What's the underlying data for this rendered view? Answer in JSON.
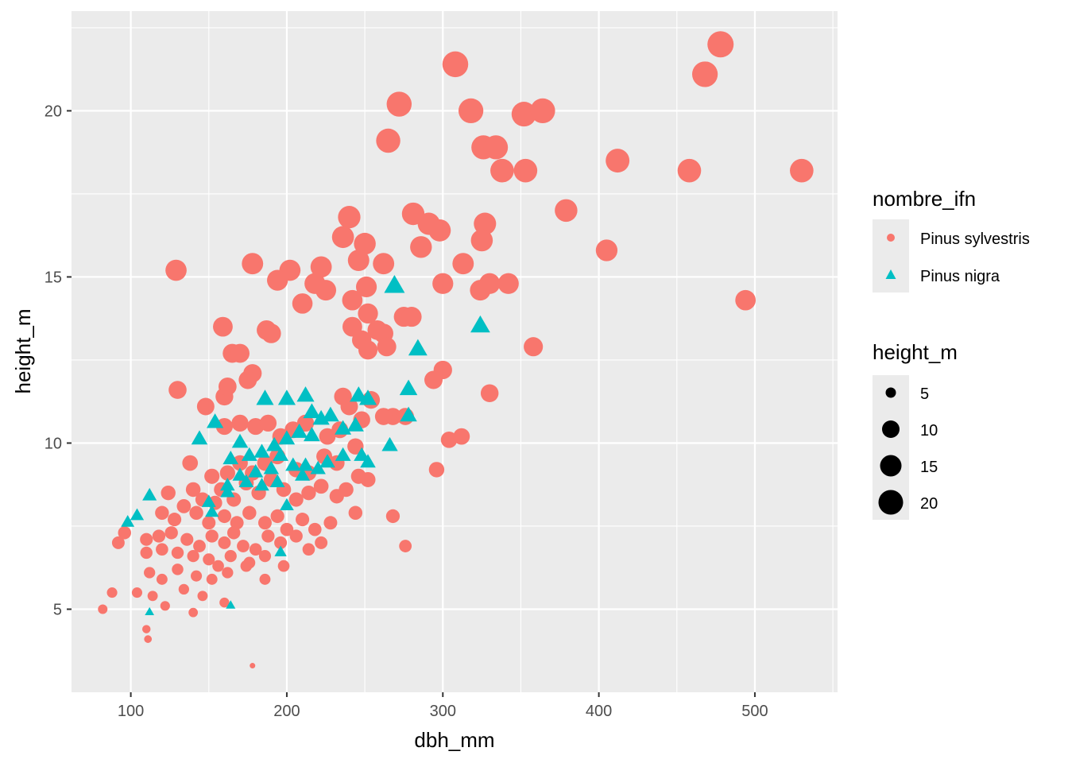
{
  "chart_data": {
    "type": "scatter",
    "xlabel": "dbh_mm",
    "ylabel": "height_m",
    "xlim": [
      62,
      553
    ],
    "ylim": [
      2.5,
      23.0
    ],
    "x_ticks": [
      100,
      200,
      300,
      400,
      500
    ],
    "y_ticks": [
      5,
      10,
      15,
      20
    ],
    "x_tick_labels": [
      "100",
      "200",
      "300",
      "400",
      "500"
    ],
    "y_tick_labels": [
      "5",
      "10",
      "15",
      "20"
    ],
    "grid": true,
    "legend_position": "right",
    "color_legend": {
      "title": "nombre_ifn",
      "entries": [
        {
          "label": "Pinus sylvestris",
          "color": "#F8766D",
          "shape": "circle"
        },
        {
          "label": "Pinus nigra",
          "color": "#00BFC4",
          "shape": "triangle"
        }
      ]
    },
    "size_legend": {
      "title": "height_m",
      "entries": [
        {
          "label": "5",
          "value": 5
        },
        {
          "label": "10",
          "value": 10
        },
        {
          "label": "15",
          "value": 15
        },
        {
          "label": "20",
          "value": 20
        }
      ]
    },
    "series": [
      {
        "name": "Pinus sylvestris",
        "shape": "circle",
        "color": "#F8766D",
        "points": [
          [
            478,
            22.0
          ],
          [
            308,
            21.4
          ],
          [
            468,
            21.1
          ],
          [
            272,
            20.2
          ],
          [
            318,
            20.0
          ],
          [
            352,
            19.9
          ],
          [
            364,
            20.0
          ],
          [
            265,
            19.1
          ],
          [
            326,
            18.9
          ],
          [
            334,
            18.9
          ],
          [
            338,
            18.2
          ],
          [
            353,
            18.2
          ],
          [
            412,
            18.5
          ],
          [
            458,
            18.2
          ],
          [
            530,
            18.2
          ],
          [
            379,
            17.0
          ],
          [
            281,
            16.9
          ],
          [
            240,
            16.8
          ],
          [
            291,
            16.6
          ],
          [
            298,
            16.4
          ],
          [
            327,
            16.6
          ],
          [
            325,
            16.1
          ],
          [
            250,
            16.0
          ],
          [
            236,
            16.2
          ],
          [
            405,
            15.8
          ],
          [
            286,
            15.9
          ],
          [
            262,
            15.4
          ],
          [
            246,
            15.5
          ],
          [
            202,
            15.2
          ],
          [
            178,
            15.4
          ],
          [
            129,
            15.2
          ],
          [
            222,
            15.3
          ],
          [
            313,
            15.4
          ],
          [
            194,
            14.9
          ],
          [
            300,
            14.8
          ],
          [
            330,
            14.8
          ],
          [
            342,
            14.8
          ],
          [
            218,
            14.8
          ],
          [
            225,
            14.6
          ],
          [
            251,
            14.7
          ],
          [
            210,
            14.2
          ],
          [
            242,
            14.3
          ],
          [
            324,
            14.6
          ],
          [
            494,
            14.3
          ],
          [
            159,
            13.5
          ],
          [
            187,
            13.4
          ],
          [
            190,
            13.3
          ],
          [
            252,
            13.9
          ],
          [
            242,
            13.5
          ],
          [
            258,
            13.4
          ],
          [
            275,
            13.8
          ],
          [
            280,
            13.8
          ],
          [
            248,
            13.1
          ],
          [
            262,
            13.3
          ],
          [
            252,
            12.8
          ],
          [
            264,
            12.9
          ],
          [
            358,
            12.9
          ],
          [
            165,
            12.7
          ],
          [
            170,
            12.7
          ],
          [
            178,
            12.1
          ],
          [
            175,
            11.9
          ],
          [
            130,
            11.6
          ],
          [
            160,
            11.4
          ],
          [
            162,
            11.7
          ],
          [
            300,
            12.2
          ],
          [
            294,
            11.9
          ],
          [
            330,
            11.5
          ],
          [
            236,
            11.4
          ],
          [
            240,
            11.1
          ],
          [
            254,
            11.3
          ],
          [
            148,
            11.1
          ],
          [
            304,
            10.1
          ],
          [
            312,
            10.2
          ],
          [
            268,
            10.8
          ],
          [
            276,
            10.8
          ],
          [
            248,
            10.7
          ],
          [
            262,
            10.8
          ],
          [
            160,
            10.5
          ],
          [
            170,
            10.6
          ],
          [
            180,
            10.5
          ],
          [
            188,
            10.6
          ],
          [
            196,
            10.2
          ],
          [
            204,
            10.4
          ],
          [
            212,
            10.6
          ],
          [
            226,
            10.2
          ],
          [
            234,
            10.4
          ],
          [
            244,
            9.9
          ],
          [
            296,
            9.2
          ],
          [
            138,
            9.4
          ],
          [
            152,
            9.0
          ],
          [
            162,
            9.1
          ],
          [
            170,
            9.4
          ],
          [
            178,
            9.1
          ],
          [
            186,
            9.4
          ],
          [
            194,
            9.6
          ],
          [
            206,
            9.2
          ],
          [
            214,
            9.1
          ],
          [
            224,
            9.6
          ],
          [
            232,
            9.4
          ],
          [
            246,
            9.0
          ],
          [
            252,
            8.9
          ],
          [
            238,
            8.6
          ],
          [
            124,
            8.5
          ],
          [
            140,
            8.6
          ],
          [
            146,
            8.3
          ],
          [
            154,
            8.2
          ],
          [
            158,
            8.6
          ],
          [
            166,
            8.3
          ],
          [
            174,
            8.8
          ],
          [
            182,
            8.5
          ],
          [
            190,
            8.9
          ],
          [
            198,
            8.6
          ],
          [
            206,
            8.3
          ],
          [
            214,
            8.5
          ],
          [
            222,
            8.7
          ],
          [
            232,
            8.4
          ],
          [
            120,
            7.9
          ],
          [
            128,
            7.7
          ],
          [
            134,
            8.1
          ],
          [
            142,
            7.9
          ],
          [
            150,
            7.6
          ],
          [
            160,
            7.8
          ],
          [
            168,
            7.6
          ],
          [
            176,
            7.9
          ],
          [
            186,
            7.6
          ],
          [
            194,
            7.8
          ],
          [
            200,
            7.4
          ],
          [
            210,
            7.7
          ],
          [
            218,
            7.4
          ],
          [
            228,
            7.6
          ],
          [
            244,
            7.9
          ],
          [
            268,
            7.8
          ],
          [
            110,
            7.1
          ],
          [
            118,
            7.2
          ],
          [
            126,
            7.3
          ],
          [
            136,
            7.1
          ],
          [
            144,
            6.9
          ],
          [
            152,
            7.2
          ],
          [
            160,
            7.0
          ],
          [
            166,
            7.3
          ],
          [
            172,
            6.9
          ],
          [
            180,
            6.8
          ],
          [
            188,
            7.2
          ],
          [
            196,
            7.0
          ],
          [
            206,
            7.2
          ],
          [
            214,
            6.8
          ],
          [
            222,
            7.0
          ],
          [
            276,
            6.9
          ],
          [
            92,
            7.0
          ],
          [
            96,
            7.3
          ],
          [
            110,
            6.7
          ],
          [
            120,
            6.8
          ],
          [
            130,
            6.7
          ],
          [
            140,
            6.6
          ],
          [
            150,
            6.5
          ],
          [
            156,
            6.3
          ],
          [
            164,
            6.6
          ],
          [
            176,
            6.4
          ],
          [
            186,
            6.6
          ],
          [
            198,
            6.3
          ],
          [
            112,
            6.1
          ],
          [
            120,
            5.9
          ],
          [
            130,
            6.2
          ],
          [
            142,
            6.0
          ],
          [
            152,
            5.9
          ],
          [
            162,
            6.1
          ],
          [
            174,
            6.3
          ],
          [
            186,
            5.9
          ],
          [
            88,
            5.5
          ],
          [
            104,
            5.5
          ],
          [
            114,
            5.4
          ],
          [
            134,
            5.6
          ],
          [
            146,
            5.4
          ],
          [
            122,
            5.1
          ],
          [
            140,
            4.9
          ],
          [
            160,
            5.2
          ],
          [
            82,
            5.0
          ],
          [
            110,
            4.4
          ],
          [
            111,
            4.1
          ],
          [
            178,
            3.3
          ]
        ]
      },
      {
        "name": "Pinus nigra",
        "shape": "triangle",
        "color": "#00BFC4",
        "points": [
          [
            269,
            14.7
          ],
          [
            324,
            13.5
          ],
          [
            284,
            12.8
          ],
          [
            278,
            11.6
          ],
          [
            186,
            11.3
          ],
          [
            200,
            11.3
          ],
          [
            212,
            11.4
          ],
          [
            246,
            11.4
          ],
          [
            252,
            11.3
          ],
          [
            216,
            10.9
          ],
          [
            222,
            10.7
          ],
          [
            228,
            10.8
          ],
          [
            236,
            10.4
          ],
          [
            244,
            10.5
          ],
          [
            278,
            10.8
          ],
          [
            154,
            10.6
          ],
          [
            144,
            10.1
          ],
          [
            170,
            10.0
          ],
          [
            192,
            9.9
          ],
          [
            200,
            10.1
          ],
          [
            208,
            10.3
          ],
          [
            216,
            10.2
          ],
          [
            266,
            9.9
          ],
          [
            164,
            9.5
          ],
          [
            176,
            9.6
          ],
          [
            184,
            9.7
          ],
          [
            196,
            9.6
          ],
          [
            204,
            9.3
          ],
          [
            212,
            9.3
          ],
          [
            226,
            9.4
          ],
          [
            236,
            9.6
          ],
          [
            248,
            9.6
          ],
          [
            252,
            9.4
          ],
          [
            170,
            9.0
          ],
          [
            180,
            9.1
          ],
          [
            190,
            9.2
          ],
          [
            210,
            9.0
          ],
          [
            220,
            9.2
          ],
          [
            162,
            8.7
          ],
          [
            174,
            8.8
          ],
          [
            184,
            8.7
          ],
          [
            194,
            8.8
          ],
          [
            112,
            8.4
          ],
          [
            150,
            8.2
          ],
          [
            162,
            8.5
          ],
          [
            152,
            7.9
          ],
          [
            200,
            8.1
          ],
          [
            98,
            7.6
          ],
          [
            104,
            7.8
          ],
          [
            196,
            6.7
          ],
          [
            112,
            4.9
          ],
          [
            164,
            5.1
          ]
        ]
      }
    ]
  }
}
